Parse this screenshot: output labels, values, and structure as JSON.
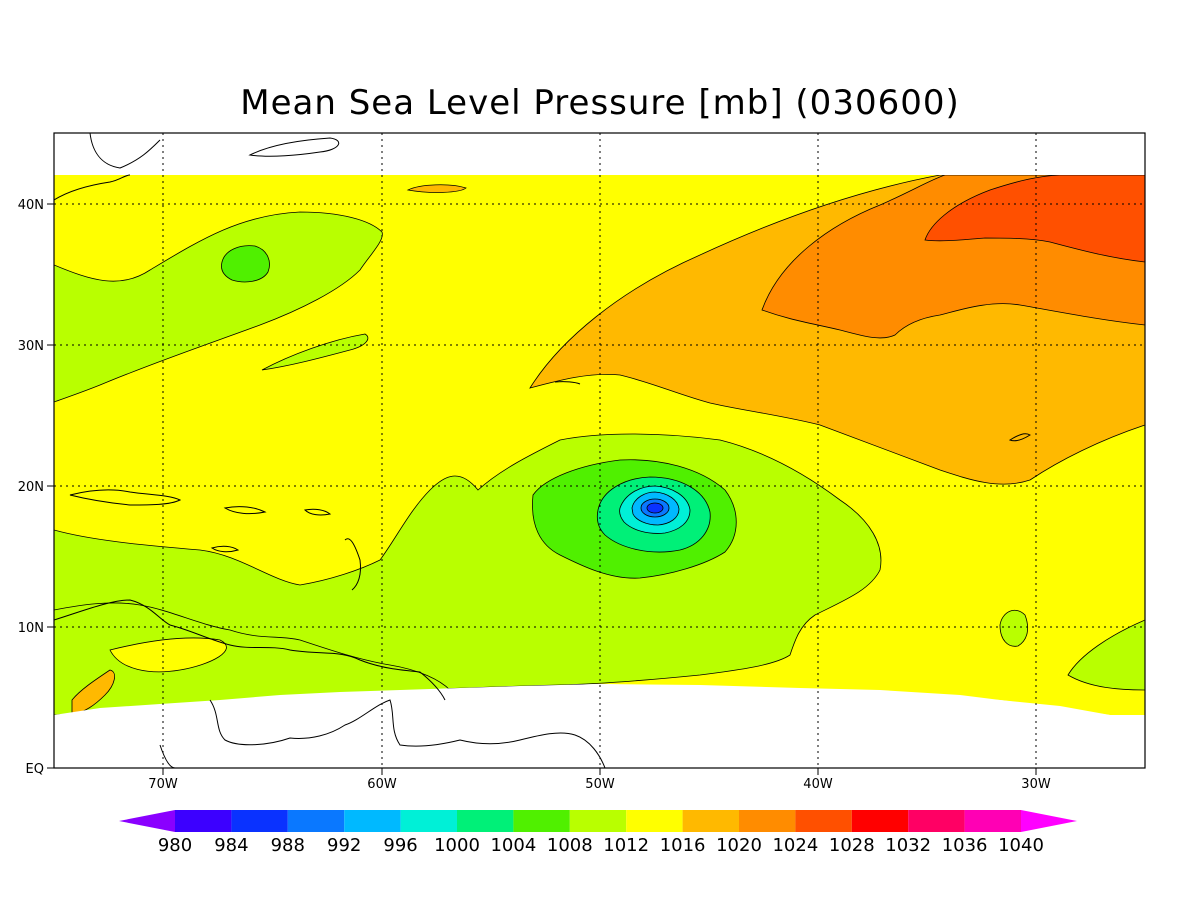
{
  "title": "Mean Sea Level Pressure [mb] (030600)",
  "x_ticks": [
    "70W",
    "60W",
    "50W",
    "40W",
    "30W"
  ],
  "y_ticks": [
    "EQ",
    "10N",
    "20N",
    "30N",
    "40N"
  ],
  "colorbar": {
    "labels": [
      "980",
      "984",
      "988",
      "992",
      "996",
      "1000",
      "1004",
      "1008",
      "1012",
      "1016",
      "1020",
      "1024",
      "1028",
      "1032",
      "1036",
      "1040"
    ],
    "colors": [
      "#8a00ff",
      "#3c00ff",
      "#0a32ff",
      "#0a78ff",
      "#00b9ff",
      "#00f0d7",
      "#00f078",
      "#50f000",
      "#b9ff00",
      "#ffff00",
      "#ffb900",
      "#ff8c00",
      "#ff5000",
      "#ff0000",
      "#ff0064",
      "#ff00b4",
      "#ff00ff"
    ]
  },
  "chart_data": {
    "type": "heatmap",
    "title": "Mean Sea Level Pressure [mb] (030600)",
    "units": "mb",
    "lon_range": [
      -75,
      -25
    ],
    "lat_range": [
      0,
      45
    ],
    "levels": [
      980,
      984,
      988,
      992,
      996,
      1000,
      1004,
      1008,
      1012,
      1016,
      1020,
      1024,
      1028,
      1032,
      1036,
      1040
    ],
    "low_center": {
      "lon": -47.5,
      "lat": 18.5,
      "min_pressure_band": "988-992"
    },
    "high_center": {
      "lon": -33,
      "lat": 38,
      "max_pressure_band": "1024-1028"
    }
  }
}
